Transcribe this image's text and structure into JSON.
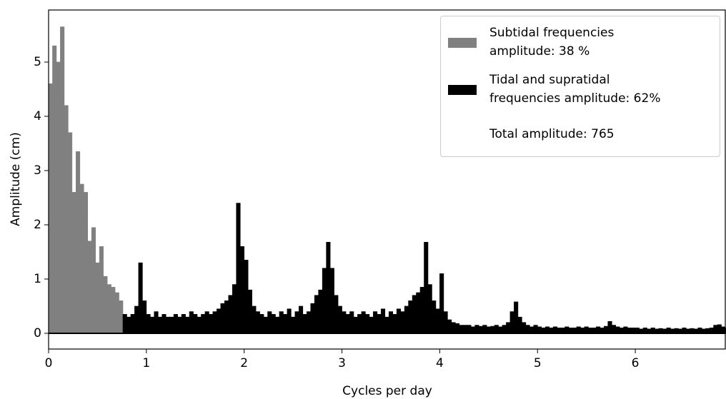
{
  "chart_data": {
    "type": "bar",
    "xlabel": "Cycles per day",
    "ylabel": "Amplitude (cm)",
    "xlim": [
      0,
      6.92
    ],
    "ylim": [
      -0.29,
      5.96
    ],
    "xticks": [
      0,
      1,
      2,
      3,
      4,
      5,
      6
    ],
    "yticks": [
      0,
      1,
      2,
      3,
      4,
      5
    ],
    "legend": "upper right",
    "annotation": "Total amplitude: 765",
    "series": [
      {
        "name": "Subtidal frequencies\namplitude: 38 %",
        "color": "#808080",
        "x": [
          0,
          0.04,
          0.08,
          0.12,
          0.16,
          0.2,
          0.24,
          0.28,
          0.32,
          0.36,
          0.4,
          0.44,
          0.48,
          0.52,
          0.56,
          0.6,
          0.64,
          0.68,
          0.72
        ],
        "values": [
          4.6,
          5.3,
          5.0,
          5.65,
          4.2,
          3.7,
          2.6,
          3.35,
          2.75,
          2.6,
          1.7,
          1.95,
          1.3,
          1.6,
          1.05,
          0.9,
          0.85,
          0.75,
          0.6
        ]
      },
      {
        "name": "Tidal and supratidal\nfrequencies amplitude: 62%",
        "color": "#000000",
        "x": [
          0.76,
          0.8,
          0.84,
          0.88,
          0.92,
          0.96,
          1,
          1.04,
          1.08,
          1.12,
          1.16,
          1.2,
          1.24,
          1.28,
          1.32,
          1.36,
          1.4,
          1.44,
          1.48,
          1.52,
          1.56,
          1.6,
          1.64,
          1.68,
          1.72,
          1.76,
          1.8,
          1.84,
          1.88,
          1.92,
          1.96,
          2,
          2.04,
          2.08,
          2.12,
          2.16,
          2.2,
          2.24,
          2.28,
          2.32,
          2.36,
          2.4,
          2.44,
          2.48,
          2.52,
          2.56,
          2.6,
          2.64,
          2.68,
          2.72,
          2.76,
          2.8,
          2.84,
          2.88,
          2.92,
          2.96,
          3,
          3.04,
          3.08,
          3.12,
          3.16,
          3.2,
          3.24,
          3.28,
          3.32,
          3.36,
          3.4,
          3.44,
          3.48,
          3.52,
          3.56,
          3.6,
          3.64,
          3.68,
          3.72,
          3.76,
          3.8,
          3.84,
          3.88,
          3.92,
          3.96,
          4,
          4.04,
          4.08,
          4.12,
          4.16,
          4.2,
          4.24,
          4.28,
          4.32,
          4.36,
          4.4,
          4.44,
          4.48,
          4.52,
          4.56,
          4.6,
          4.64,
          4.68,
          4.72,
          4.76,
          4.8,
          4.84,
          4.88,
          4.92,
          4.96,
          5,
          5.04,
          5.08,
          5.12,
          5.16,
          5.2,
          5.24,
          5.28,
          5.32,
          5.36,
          5.4,
          5.44,
          5.48,
          5.52,
          5.56,
          5.6,
          5.64,
          5.68,
          5.72,
          5.76,
          5.8,
          5.84,
          5.88,
          5.92,
          5.96,
          6,
          6.04,
          6.08,
          6.12,
          6.16,
          6.2,
          6.24,
          6.28,
          6.32,
          6.36,
          6.4,
          6.44,
          6.48,
          6.52,
          6.56,
          6.6,
          6.64,
          6.68,
          6.72,
          6.76,
          6.8,
          6.84,
          6.88,
          6.92
        ],
        "values": [
          0.35,
          0.3,
          0.35,
          0.5,
          1.3,
          0.6,
          0.35,
          0.3,
          0.4,
          0.3,
          0.35,
          0.3,
          0.3,
          0.35,
          0.3,
          0.35,
          0.3,
          0.4,
          0.35,
          0.3,
          0.35,
          0.4,
          0.35,
          0.4,
          0.45,
          0.55,
          0.6,
          0.7,
          0.9,
          2.4,
          1.6,
          1.35,
          0.8,
          0.5,
          0.4,
          0.35,
          0.3,
          0.4,
          0.35,
          0.3,
          0.4,
          0.35,
          0.45,
          0.3,
          0.4,
          0.5,
          0.35,
          0.4,
          0.55,
          0.7,
          0.8,
          1.2,
          1.68,
          1.2,
          0.7,
          0.5,
          0.4,
          0.35,
          0.4,
          0.3,
          0.35,
          0.4,
          0.35,
          0.3,
          0.4,
          0.35,
          0.45,
          0.3,
          0.4,
          0.35,
          0.45,
          0.4,
          0.5,
          0.6,
          0.7,
          0.75,
          0.85,
          1.68,
          0.9,
          0.6,
          0.45,
          1.1,
          0.4,
          0.25,
          0.2,
          0.18,
          0.15,
          0.15,
          0.15,
          0.12,
          0.15,
          0.13,
          0.15,
          0.12,
          0.13,
          0.15,
          0.12,
          0.15,
          0.2,
          0.4,
          0.58,
          0.3,
          0.2,
          0.15,
          0.12,
          0.15,
          0.12,
          0.1,
          0.12,
          0.1,
          0.12,
          0.1,
          0.1,
          0.12,
          0.1,
          0.1,
          0.12,
          0.1,
          0.12,
          0.1,
          0.1,
          0.12,
          0.1,
          0.13,
          0.22,
          0.15,
          0.12,
          0.1,
          0.12,
          0.1,
          0.1,
          0.1,
          0.08,
          0.1,
          0.08,
          0.1,
          0.08,
          0.09,
          0.08,
          0.1,
          0.08,
          0.09,
          0.08,
          0.1,
          0.08,
          0.09,
          0.08,
          0.1,
          0.08,
          0.09,
          0.1,
          0.15,
          0.16,
          0.12,
          0.1
        ]
      }
    ]
  }
}
